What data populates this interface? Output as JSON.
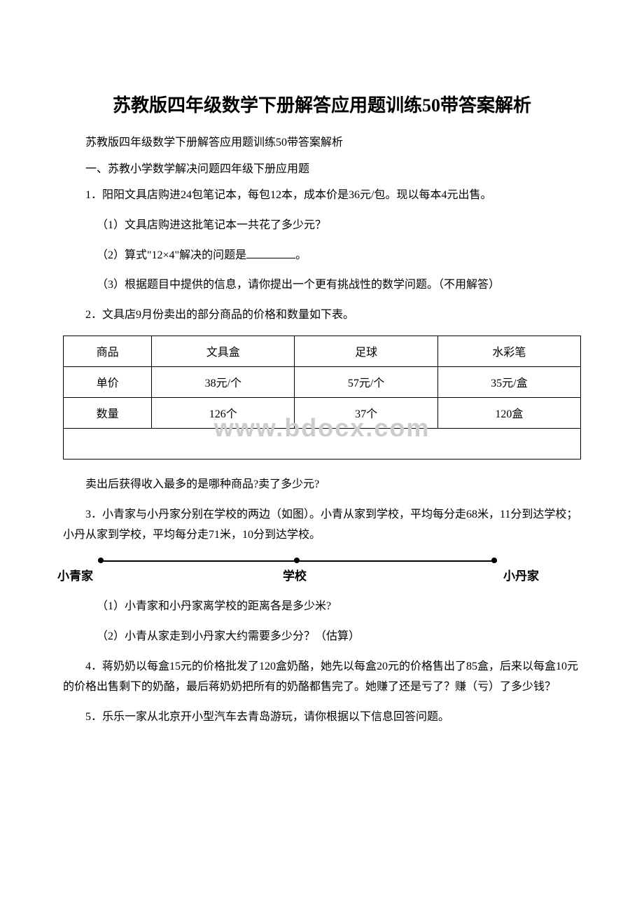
{
  "title": "苏教版四年级数学下册解答应用题训练50带答案解析",
  "subtitle": "苏教版四年级数学下册解答应用题训练50带答案解析",
  "section_header": "一、苏教小学数学解决问题四年级下册应用题",
  "q1": {
    "stem": "1．阳阳文具店购进24包笔记本，每包12本，成本价是36元/包。现以每本4元出售。",
    "p1": "（1）文具店购进这批笔记本一共花了多少元？",
    "p2_before": "（2）算式\"12×4\"解决的问题是",
    "p2_after": "。",
    "p3": "（3）根据题目中提供的信息，请你提出一个更有挑战性的数学问题。（不用解答）"
  },
  "q2": {
    "stem": "2．文具店9月份卖出的部分商品的价格和数量如下表。",
    "table": {
      "rows": [
        [
          "商品",
          "文具盒",
          "足球",
          "水彩笔"
        ],
        [
          "单价",
          "38元/个",
          "57元/个",
          "35元/盒"
        ],
        [
          "数量",
          "126个",
          "37个",
          "120盒"
        ]
      ]
    },
    "watermark": "www.bdocx.com",
    "followup": "卖出后获得收入最多的是哪种商品?卖了多少元?"
  },
  "q3": {
    "stem": "3．小青家与小丹家分别在学校的两边（如图）。小青从家到学校，平均每分走68米，11分到达学校；小丹从家到学校，平均每分走71米，10分到达学校。",
    "labels": {
      "left": "小青家",
      "mid": "学校",
      "right": "小丹家"
    },
    "p1": "（1）小青家和小丹家离学校的距离各是多少米?",
    "p2": "（2）小青从家走到小丹家大约需要多少分？（估算）"
  },
  "q4": {
    "stem": "4．蒋奶奶以每盒15元的价格批发了120盒奶酪，她先以每盒20元的价格售出了85盒，后来以每盒10元的价格出售剩下的奶酪，最后蒋奶奶把所有的奶酪都售完了。她赚了还是亏了？赚（亏）了多少钱？"
  },
  "q5": {
    "stem": "5．乐乐一家从北京开小型汽车去青岛游玩，请你根据以下信息回答问题。"
  }
}
